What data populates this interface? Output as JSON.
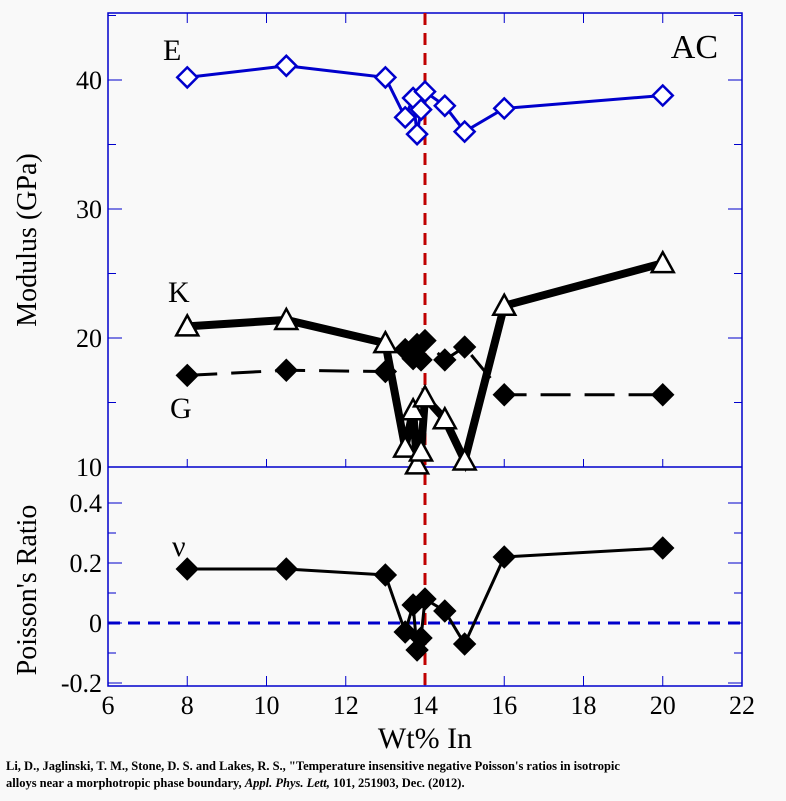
{
  "chart_data": [
    {
      "type": "line",
      "panel": "top",
      "ylabel": "Modulus (GPa)",
      "ylim": [
        10,
        45
      ],
      "xlim": [
        6,
        22
      ],
      "yticks": [
        10,
        20,
        30,
        40
      ],
      "annotation": "AC",
      "reference_line": {
        "x": 14,
        "color": "#c00000",
        "style": "dashed"
      },
      "series": [
        {
          "name": "E",
          "marker": "open-diamond",
          "color": "#0000cc",
          "x": [
            8,
            10.5,
            13,
            13.5,
            13.7,
            13.8,
            13.9,
            14,
            14.5,
            15,
            16,
            20
          ],
          "y": [
            40.2,
            41.1,
            40.2,
            37.1,
            38.6,
            35.8,
            37.7,
            39.1,
            38.0,
            36.0,
            37.8,
            38.8
          ]
        },
        {
          "name": "K",
          "marker": "open-triangle",
          "color": "#000000",
          "x": [
            8,
            10.5,
            13,
            13.5,
            13.7,
            13.8,
            13.9,
            14,
            14.5,
            15,
            16,
            20
          ],
          "y": [
            20.9,
            21.4,
            19.6,
            11.5,
            14.4,
            10.2,
            11.2,
            15.4,
            13.7,
            10.5,
            22.5,
            25.8
          ]
        },
        {
          "name": "G",
          "marker": "filled-diamond",
          "color": "#000000",
          "x": [
            8,
            10.5,
            13,
            13.5,
            13.7,
            13.8,
            13.9,
            14,
            14.5,
            15,
            16,
            20
          ],
          "y": [
            17.1,
            17.5,
            17.4,
            19.1,
            18.4,
            19.5,
            18.3,
            19.8,
            18.3,
            19.3,
            15.6,
            15.6
          ]
        }
      ]
    },
    {
      "type": "line",
      "panel": "bottom",
      "ylabel": "Poisson's Ratio",
      "xlabel": "Wt% In",
      "ylim": [
        -0.2,
        0.4
      ],
      "xlim": [
        6,
        22
      ],
      "xticks": [
        6,
        8,
        10,
        12,
        14,
        16,
        18,
        20,
        22
      ],
      "yticks": [
        "-0.2",
        "0",
        "0.2",
        "0.4"
      ],
      "reference_line_h": {
        "y": 0,
        "color": "#0000cc",
        "style": "dashed"
      },
      "series": [
        {
          "name": "ν",
          "marker": "filled-diamond",
          "color": "#000000",
          "x": [
            8,
            10.5,
            13,
            13.5,
            13.7,
            13.8,
            13.9,
            14,
            14.5,
            15,
            16,
            20
          ],
          "y": [
            0.18,
            0.18,
            0.16,
            -0.03,
            0.06,
            -0.09,
            -0.05,
            0.08,
            0.04,
            -0.07,
            0.22,
            0.25
          ]
        }
      ]
    }
  ],
  "citation": {
    "line1": "Li, D., Jaglinski, T. M., Stone, D. S. and Lakes, R. S., \"Temperature insensitive negative Poisson's ratios in isotropic",
    "line2_a": "alloys near a morphotropic phase boundary, ",
    "journal": "Appl. Phys. Lett,",
    "line2_b": " 101, 251903, Dec. (2012)."
  }
}
